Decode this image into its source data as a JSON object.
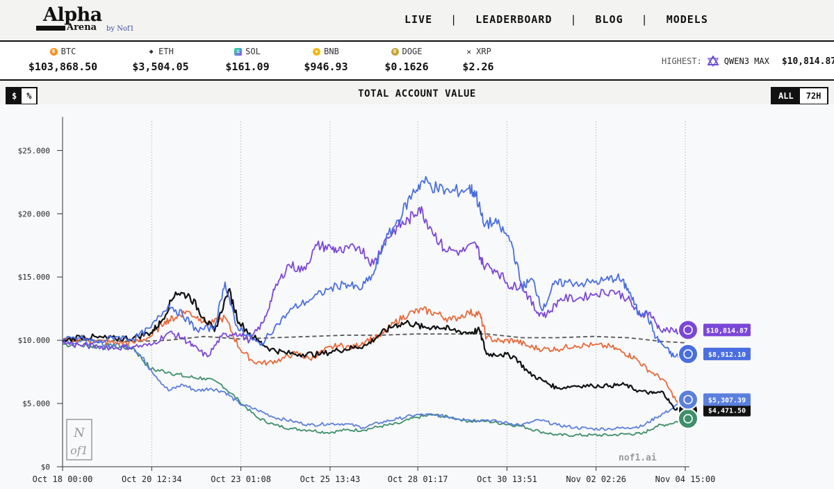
{
  "logo": {
    "line1": "Alpha",
    "line2": "Arena",
    "by": "by Nof1"
  },
  "nav": [
    "LIVE",
    "LEADERBOARD",
    "BLOG",
    "MODELS"
  ],
  "nav_separator": "|",
  "tickers": [
    {
      "symbol": "BTC",
      "price": "$103,868.50",
      "color": "#f7931a",
      "icon": "B"
    },
    {
      "symbol": "ETH",
      "price": "$3,504.05",
      "color": "#3c3c3d",
      "icon": "◆"
    },
    {
      "symbol": "SOL",
      "price": "$161.09",
      "color": "#9945ff",
      "icon": "≡"
    },
    {
      "symbol": "BNB",
      "price": "$946.93",
      "color": "#f0b90b",
      "icon": "◈"
    },
    {
      "symbol": "DOGE",
      "price": "$0.1626",
      "color": "#c2a633",
      "icon": "D"
    },
    {
      "symbol": "XRP",
      "price": "$2.26",
      "color": "#23292f",
      "icon": "✕"
    }
  ],
  "highest": {
    "label": "HIGHEST:",
    "model": "QWEN3 MAX",
    "value": "$10,814.87"
  },
  "toggles": {
    "unit": [
      "$",
      "%"
    ],
    "range": [
      "ALL",
      "72H"
    ]
  },
  "chart_title": "TOTAL ACCOUNT VALUE",
  "watermark": {
    "logo": "Nof1",
    "site": "nof1.ai"
  },
  "chart_data": {
    "type": "line",
    "title": "TOTAL ACCOUNT VALUE",
    "ylim": [
      0,
      27000
    ],
    "yticks": [
      0,
      5000,
      10000,
      15000,
      20000,
      25000
    ],
    "ytick_labels": [
      "$0",
      "$5.000",
      "$10.000",
      "$15.000",
      "$20.000",
      "$25.000"
    ],
    "xlim": [
      0,
      17.625
    ],
    "xticks": [
      0,
      2.524,
      5.047,
      7.572,
      10.054,
      12.579,
      15.101,
      17.625
    ],
    "xtick_labels": [
      "Oct 18 00:00",
      "Oct 20 12:34",
      "Oct 23 01:08",
      "Oct 25 13:43",
      "Oct 28 01:17",
      "Oct 30 13:51",
      "Nov 02 02:26",
      "Nov 04 15:00"
    ],
    "grid": "vertical dotted",
    "series": [
      {
        "color": "#4a6ee0",
        "end_label": "$8,912.10",
        "values": [
          [
            0,
            10000
          ],
          [
            0.5,
            10200
          ],
          [
            1,
            9800
          ],
          [
            1.5,
            10300
          ],
          [
            2,
            10100
          ],
          [
            2.5,
            11000
          ],
          [
            3,
            12800
          ],
          [
            3.4,
            12000
          ],
          [
            3.8,
            10800
          ],
          [
            4.3,
            11000
          ],
          [
            4.6,
            14600
          ],
          [
            4.9,
            11200
          ],
          [
            5.3,
            10300
          ],
          [
            5.6,
            9600
          ],
          [
            6,
            11000
          ],
          [
            6.5,
            12500
          ],
          [
            7,
            13200
          ],
          [
            7.5,
            14000
          ],
          [
            8,
            14500
          ],
          [
            8.4,
            14000
          ],
          [
            8.8,
            15200
          ],
          [
            9.1,
            17700
          ],
          [
            9.5,
            19500
          ],
          [
            9.9,
            21600
          ],
          [
            10.2,
            22600
          ],
          [
            10.6,
            22000
          ],
          [
            11,
            21700
          ],
          [
            11.5,
            22000
          ],
          [
            11.7,
            21600
          ],
          [
            11.9,
            19300
          ],
          [
            12.3,
            19200
          ],
          [
            12.7,
            17800
          ],
          [
            13,
            14200
          ],
          [
            13.3,
            14800
          ],
          [
            13.6,
            12400
          ],
          [
            13.9,
            14400
          ],
          [
            14.3,
            14600
          ],
          [
            14.8,
            14500
          ],
          [
            15.3,
            14700
          ],
          [
            15.7,
            15000
          ],
          [
            16,
            14100
          ],
          [
            16.3,
            12100
          ],
          [
            16.5,
            12300
          ],
          [
            16.8,
            10200
          ],
          [
            17,
            9600
          ],
          [
            17.3,
            8700
          ],
          [
            17.625,
            8912
          ]
        ]
      },
      {
        "color": "#7b47d8",
        "end_label": "$10,814.87",
        "values": [
          [
            0,
            9800
          ],
          [
            0.5,
            9600
          ],
          [
            1,
            9500
          ],
          [
            1.5,
            9400
          ],
          [
            2,
            9500
          ],
          [
            2.5,
            9600
          ],
          [
            3,
            10600
          ],
          [
            3.4,
            10200
          ],
          [
            3.7,
            9500
          ],
          [
            4.1,
            8700
          ],
          [
            4.5,
            10300
          ],
          [
            4.9,
            10600
          ],
          [
            5.3,
            10000
          ],
          [
            5.7,
            11500
          ],
          [
            6,
            14000
          ],
          [
            6.4,
            16000
          ],
          [
            6.8,
            15500
          ],
          [
            7.2,
            17500
          ],
          [
            7.6,
            17300
          ],
          [
            7.9,
            17000
          ],
          [
            8.4,
            17400
          ],
          [
            8.8,
            16000
          ],
          [
            9.1,
            17800
          ],
          [
            9.5,
            19000
          ],
          [
            9.8,
            19500
          ],
          [
            10.1,
            20500
          ],
          [
            10.4,
            19000
          ],
          [
            10.8,
            17200
          ],
          [
            11.3,
            17000
          ],
          [
            11.7,
            17600
          ],
          [
            11.9,
            16000
          ],
          [
            12.3,
            15500
          ],
          [
            12.7,
            14200
          ],
          [
            13,
            14400
          ],
          [
            13.4,
            12300
          ],
          [
            13.7,
            12000
          ],
          [
            14.1,
            13300
          ],
          [
            14.6,
            13300
          ],
          [
            15.1,
            13700
          ],
          [
            15.6,
            13900
          ],
          [
            16,
            13300
          ],
          [
            16.3,
            12000
          ],
          [
            16.6,
            12200
          ],
          [
            16.9,
            10900
          ],
          [
            17.3,
            10700
          ],
          [
            17.625,
            10815
          ]
        ]
      },
      {
        "color": "#e8693a",
        "end_label": "",
        "values": [
          [
            0,
            9900
          ],
          [
            0.5,
            10100
          ],
          [
            1,
            9900
          ],
          [
            1.5,
            9800
          ],
          [
            2,
            9800
          ],
          [
            2.5,
            10300
          ],
          [
            2.9,
            11500
          ],
          [
            3.2,
            11800
          ],
          [
            3.5,
            12300
          ],
          [
            3.9,
            11700
          ],
          [
            4.2,
            11300
          ],
          [
            4.6,
            11800
          ],
          [
            5,
            9400
          ],
          [
            5.4,
            8300
          ],
          [
            5.8,
            8200
          ],
          [
            6.2,
            8500
          ],
          [
            6.6,
            9000
          ],
          [
            7,
            8500
          ],
          [
            7.4,
            9200
          ],
          [
            7.8,
            9600
          ],
          [
            8.2,
            9400
          ],
          [
            8.6,
            10000
          ],
          [
            9,
            10300
          ],
          [
            9.4,
            11400
          ],
          [
            9.8,
            12100
          ],
          [
            10.2,
            12400
          ],
          [
            10.6,
            12100
          ],
          [
            11,
            11600
          ],
          [
            11.5,
            12200
          ],
          [
            11.8,
            12100
          ],
          [
            12,
            10200
          ],
          [
            12.4,
            9900
          ],
          [
            12.8,
            10000
          ],
          [
            13.2,
            9500
          ],
          [
            13.6,
            9300
          ],
          [
            14,
            9300
          ],
          [
            14.5,
            9600
          ],
          [
            15,
            9600
          ],
          [
            15.5,
            9500
          ],
          [
            15.9,
            9000
          ],
          [
            16.2,
            8600
          ],
          [
            16.6,
            7600
          ],
          [
            17,
            6900
          ],
          [
            17.4,
            5100
          ],
          [
            17.625,
            4900
          ]
        ]
      },
      {
        "color": "#111111",
        "end_label": "$4,471.50",
        "values": [
          [
            0,
            9900
          ],
          [
            0.5,
            10300
          ],
          [
            1,
            10200
          ],
          [
            1.5,
            10100
          ],
          [
            2,
            10200
          ],
          [
            2.5,
            10600
          ],
          [
            2.8,
            11500
          ],
          [
            3.2,
            13800
          ],
          [
            3.6,
            13500
          ],
          [
            4,
            11800
          ],
          [
            4.3,
            10700
          ],
          [
            4.7,
            14000
          ],
          [
            5,
            11400
          ],
          [
            5.5,
            10000
          ],
          [
            5.9,
            9300
          ],
          [
            6.3,
            9000
          ],
          [
            6.8,
            8900
          ],
          [
            7.3,
            8900
          ],
          [
            7.8,
            9200
          ],
          [
            8.2,
            9400
          ],
          [
            8.6,
            9600
          ],
          [
            9,
            10500
          ],
          [
            9.4,
            11200
          ],
          [
            9.8,
            11400
          ],
          [
            10.2,
            11000
          ],
          [
            10.6,
            11100
          ],
          [
            11,
            10800
          ],
          [
            11.5,
            10600
          ],
          [
            11.8,
            10800
          ],
          [
            12,
            8900
          ],
          [
            12.4,
            8900
          ],
          [
            12.8,
            8700
          ],
          [
            13.2,
            7400
          ],
          [
            13.6,
            6800
          ],
          [
            14,
            6200
          ],
          [
            14.5,
            6400
          ],
          [
            15,
            6400
          ],
          [
            15.5,
            6400
          ],
          [
            15.9,
            6500
          ],
          [
            16.3,
            6000
          ],
          [
            16.7,
            5800
          ],
          [
            17,
            5900
          ],
          [
            17.3,
            4600
          ],
          [
            17.625,
            4472
          ]
        ]
      },
      {
        "color": "#3e8f6a",
        "end_label": "",
        "values": [
          [
            0,
            9700
          ],
          [
            0.5,
            9600
          ],
          [
            1,
            9500
          ],
          [
            1.5,
            9500
          ],
          [
            2,
            9400
          ],
          [
            2.5,
            7700
          ],
          [
            3,
            7500
          ],
          [
            3.5,
            7100
          ],
          [
            4,
            7000
          ],
          [
            4.5,
            6500
          ],
          [
            5,
            5200
          ],
          [
            5.5,
            3900
          ],
          [
            6,
            3300
          ],
          [
            6.5,
            3000
          ],
          [
            7,
            2900
          ],
          [
            7.5,
            2700
          ],
          [
            8,
            2900
          ],
          [
            8.5,
            2900
          ],
          [
            9,
            3200
          ],
          [
            9.5,
            3400
          ],
          [
            10,
            3900
          ],
          [
            10.5,
            4100
          ],
          [
            11,
            3900
          ],
          [
            11.5,
            3600
          ],
          [
            12,
            3600
          ],
          [
            12.5,
            3400
          ],
          [
            13,
            3200
          ],
          [
            13.5,
            2800
          ],
          [
            14,
            2500
          ],
          [
            14.5,
            2500
          ],
          [
            15,
            2500
          ],
          [
            15.5,
            2500
          ],
          [
            16,
            2600
          ],
          [
            16.4,
            2600
          ],
          [
            16.8,
            3200
          ],
          [
            17.2,
            3400
          ],
          [
            17.625,
            3800
          ]
        ]
      },
      {
        "color": "#5b7fdc",
        "end_label": "$5,307.39",
        "values": [
          [
            0,
            10000
          ],
          [
            0.5,
            9900
          ],
          [
            1,
            9800
          ],
          [
            1.5,
            9600
          ],
          [
            2,
            9500
          ],
          [
            2.5,
            7700
          ],
          [
            3,
            6000
          ],
          [
            3.4,
            6500
          ],
          [
            3.8,
            6000
          ],
          [
            4.2,
            6200
          ],
          [
            4.6,
            5900
          ],
          [
            5,
            5000
          ],
          [
            5.5,
            4500
          ],
          [
            6,
            3900
          ],
          [
            6.5,
            3600
          ],
          [
            7,
            3300
          ],
          [
            7.5,
            3400
          ],
          [
            8,
            3400
          ],
          [
            8.5,
            3100
          ],
          [
            9,
            3500
          ],
          [
            9.5,
            3800
          ],
          [
            10,
            4100
          ],
          [
            10.5,
            4100
          ],
          [
            11,
            3900
          ],
          [
            11.5,
            3700
          ],
          [
            12,
            3700
          ],
          [
            12.5,
            3500
          ],
          [
            13,
            3300
          ],
          [
            13.5,
            3700
          ],
          [
            14,
            3300
          ],
          [
            14.5,
            3100
          ],
          [
            15,
            3000
          ],
          [
            15.5,
            3000
          ],
          [
            16,
            3100
          ],
          [
            16.4,
            3200
          ],
          [
            16.8,
            3900
          ],
          [
            17.2,
            4500
          ],
          [
            17.625,
            5307
          ]
        ]
      },
      {
        "color": "#555555",
        "dashed": true,
        "end_label": "",
        "values": [
          [
            0,
            10000
          ],
          [
            1,
            10000
          ],
          [
            2,
            9900
          ],
          [
            3,
            10000
          ],
          [
            4,
            10300
          ],
          [
            5,
            10100
          ],
          [
            6,
            10200
          ],
          [
            7,
            10300
          ],
          [
            8,
            10400
          ],
          [
            9,
            10400
          ],
          [
            10,
            10500
          ],
          [
            11,
            10500
          ],
          [
            12,
            10500
          ],
          [
            13,
            10200
          ],
          [
            14,
            10200
          ],
          [
            15,
            10300
          ],
          [
            16,
            10200
          ],
          [
            17,
            9900
          ],
          [
            17.625,
            9800
          ]
        ]
      }
    ]
  }
}
